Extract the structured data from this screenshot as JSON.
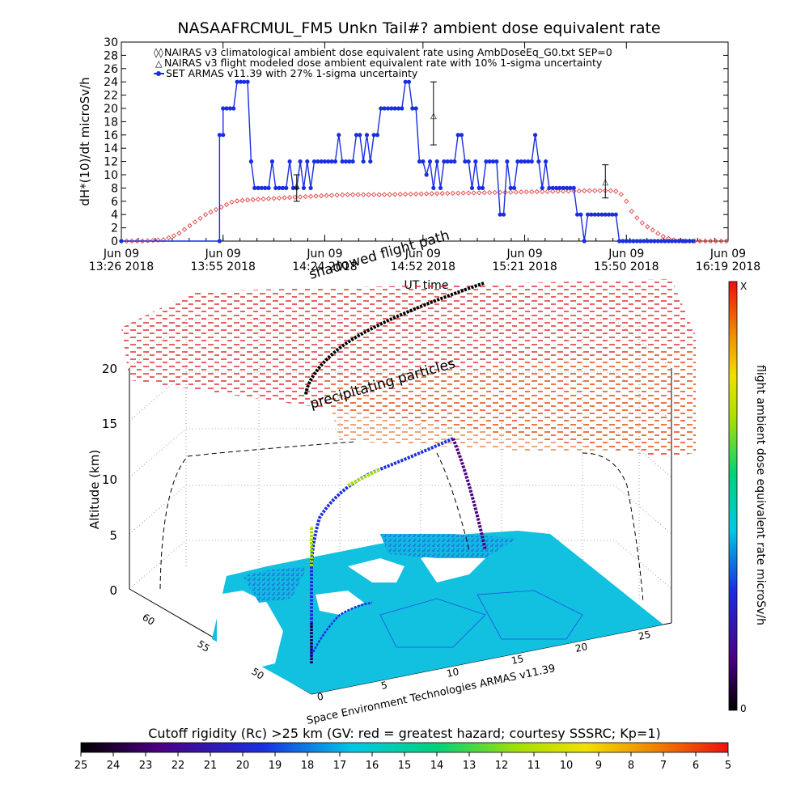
{
  "page_title": "NASAAFRCMUL_FM5 Unkn Tail#? ambient dose equivalent rate",
  "chart_data": [
    {
      "type": "line",
      "ylabel": "dH*(10)/dt microSv/h",
      "xlabel": "UT time",
      "ylim": [
        0,
        30
      ],
      "yticks": [
        "0",
        "2",
        "4",
        "6",
        "8",
        "10",
        "12",
        "14",
        "16",
        "18",
        "20",
        "22",
        "24",
        "26",
        "28",
        "30"
      ],
      "xticks": [
        {
          "line1": "Jun 09",
          "line2": "13:26 2018",
          "t": 806
        },
        {
          "line1": "Jun 09",
          "line2": "13:55 2018",
          "t": 835
        },
        {
          "line1": "Jun 09",
          "line2": "14:24 2018",
          "t": 864
        },
        {
          "line1": "Jun 09",
          "line2": "14:52 2018",
          "t": 892
        },
        {
          "line1": "Jun 09",
          "line2": "15:21 2018",
          "t": 921
        },
        {
          "line1": "Jun 09",
          "line2": "15:50 2018",
          "t": 950
        },
        {
          "line1": "Jun 09",
          "line2": "16:19 2018",
          "t": 979
        }
      ],
      "xrange_min": [
        806,
        979
      ],
      "legend": [
        "NAIRAS v3 climatological ambient dose equivalent rate using AmbDoseEq_G0.txt SEP=0",
        "NAIRAS v3 flight modeled dose ambient equivalent rate with 10% 1-sigma uncertainty",
        "SET ARMAS v11.39 with 27% 1-sigma uncertainty"
      ],
      "colors": {
        "nairas": "#e05050",
        "armas": "#1a2ee0"
      },
      "series": [
        {
          "name": "SET ARMAS v11.39 with 27% 1-sigma uncertainty",
          "t": [
            806,
            834,
            834,
            835,
            835,
            836,
            837,
            838,
            839,
            840,
            841,
            842,
            843,
            844,
            845,
            846,
            847,
            848,
            849,
            850,
            851,
            852,
            853,
            854,
            855,
            856,
            857,
            858,
            859,
            860,
            861,
            862,
            863,
            864,
            865,
            866,
            867,
            868,
            869,
            870,
            871,
            872,
            873,
            874,
            875,
            876,
            877,
            878,
            879,
            880,
            881,
            882,
            883,
            884,
            885,
            886,
            887,
            888,
            889,
            890,
            891,
            892,
            893,
            894,
            895,
            896,
            897,
            898,
            899,
            900,
            901,
            902,
            903,
            904,
            905,
            906,
            907,
            908,
            909,
            910,
            911,
            912,
            913,
            914,
            915,
            916,
            917,
            918,
            919,
            920,
            921,
            922,
            923,
            924,
            925,
            926,
            927,
            928,
            929,
            930,
            931,
            932,
            933,
            934,
            935,
            936,
            937,
            938,
            939,
            940,
            941,
            942,
            943,
            944,
            945,
            946,
            947,
            948,
            949,
            950,
            951,
            952,
            953,
            954,
            955,
            956,
            957,
            958,
            959,
            960,
            961,
            962,
            963,
            964,
            965,
            966,
            967,
            968,
            969
          ],
          "values": [
            0,
            0,
            16,
            16,
            20,
            20,
            20,
            20,
            24,
            24,
            24,
            24,
            12,
            8,
            8,
            8,
            8,
            8,
            12,
            8,
            8,
            8,
            8,
            12,
            8,
            8,
            12,
            8,
            12,
            8,
            12,
            12,
            12,
            12,
            12,
            12,
            12,
            16,
            12,
            12,
            12,
            12,
            16,
            16,
            12,
            16,
            12,
            16,
            16,
            20,
            20,
            20,
            20,
            20,
            20,
            20,
            24,
            24,
            20,
            20,
            12,
            12,
            10,
            12,
            8,
            12,
            8,
            12,
            12,
            12,
            12,
            16,
            16,
            12,
            12,
            8,
            12,
            8,
            8,
            12,
            12,
            12,
            12,
            4,
            4,
            12,
            8,
            8,
            12,
            12,
            12,
            12,
            12,
            16,
            12,
            8,
            12,
            8,
            8,
            8,
            8,
            8,
            8,
            8,
            8,
            4,
            4,
            0,
            4,
            4,
            4,
            4,
            4,
            4,
            4,
            4,
            4,
            0,
            0,
            0,
            0,
            0,
            0,
            0,
            0,
            0,
            0,
            0,
            0,
            0,
            0,
            0,
            0,
            0,
            0,
            0,
            0,
            0,
            0
          ],
          "errorbars": [
            {
              "t": 856,
              "y": 8.5,
              "lo": 6,
              "hi": 10
            },
            {
              "t": 895,
              "y": 19,
              "lo": 14.5,
              "hi": 24
            },
            {
              "t": 944,
              "y": 9,
              "lo": 6.5,
              "hi": 11.5
            }
          ]
        },
        {
          "name": "NAIRAS v3 climatological ambient dose equivalent rate using AmbDoseEq_G0.txt SEP=0",
          "t": [
            806,
            812,
            818,
            822,
            826,
            830,
            834,
            838,
            842,
            848,
            855,
            862,
            870,
            880,
            890,
            900,
            910,
            920,
            930,
            940,
            946,
            948,
            950,
            952,
            955,
            958,
            960,
            962,
            964,
            966,
            969
          ],
          "values": [
            0,
            0,
            0.2,
            1,
            2.5,
            4,
            5,
            6,
            6.2,
            6.4,
            6.6,
            6.8,
            7,
            7,
            7.1,
            7.2,
            7.3,
            7.4,
            7.5,
            7.6,
            7.6,
            7.4,
            6,
            4,
            2.5,
            1.5,
            0.8,
            0.4,
            0.1,
            0,
            0
          ]
        }
      ]
    },
    {
      "type": "3d-flight-path",
      "ylabel": "Altitude (km)",
      "z_ticks": [
        "0",
        "5",
        "10",
        "15",
        "20"
      ],
      "lat_ticks": [
        "60",
        "55",
        "50"
      ],
      "lon_ticks": [
        "0",
        "5",
        "10",
        "15",
        "20",
        "25"
      ],
      "annotations": [
        "shadowed flight path",
        "precipitating particles"
      ],
      "colorbar_label": "flight ambient dose equivalent rate microSv/h",
      "colorbar_top": "X",
      "colorbar_bottom": "0",
      "credit": "Space Environment Technologies ARMAS v11.39"
    },
    {
      "type": "colorbar",
      "title": "Cutoff rigidity (Rc) >25 km (GV: red = greatest hazard; courtesy SSSRC; Kp=1)",
      "ticks": [
        "25",
        "24",
        "23",
        "22",
        "21",
        "20",
        "19",
        "18",
        "17",
        "16",
        "15",
        "14",
        "13",
        "12",
        "11",
        "10",
        "9",
        "8",
        "7",
        "6",
        "5"
      ]
    }
  ]
}
